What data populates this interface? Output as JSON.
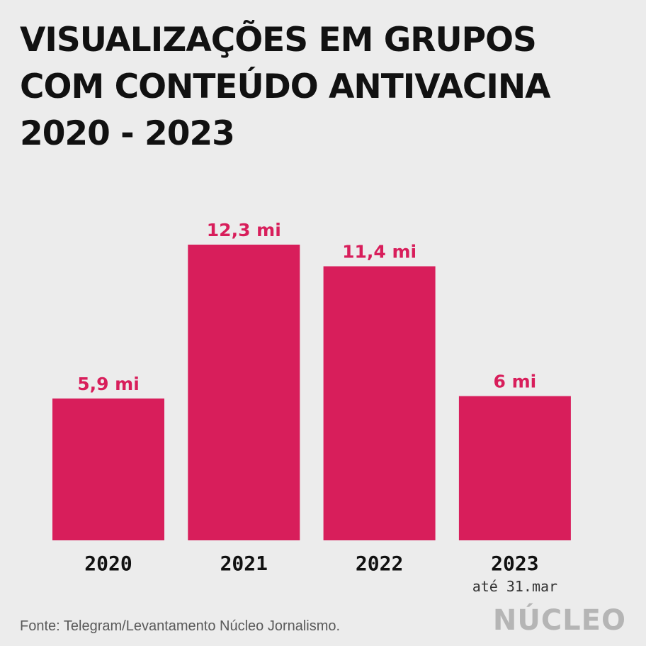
{
  "title_lines": [
    "VISUALIZAÇÕES EM GRUPOS",
    "COM CONTEÚDO ANTIVACINA",
    "2020 - 2023"
  ],
  "source": "Fonte: Telegram/Levantamento Núcleo Jornalismo.",
  "logo": "NÚCLEO",
  "colors": {
    "bar": "#d81e5b",
    "background": "#ececec",
    "text": "#111111",
    "logo": "#b5b5b5"
  },
  "chart_data": {
    "type": "bar",
    "title": "VISUALIZAÇÕES EM GRUPOS COM CONTEÚDO ANTIVACINA 2020 - 2023",
    "categories": [
      "2020",
      "2021",
      "2022",
      "2023"
    ],
    "category_notes": [
      "",
      "",
      "",
      "até 31.mar"
    ],
    "values": [
      5.9,
      12.3,
      11.4,
      6
    ],
    "data_labels": [
      "5,9 mi",
      "12,3 mi",
      "11,4 mi",
      "6 mi"
    ],
    "unit": "mi",
    "xlabel": "",
    "ylabel": "",
    "ylim": [
      0,
      12.3
    ],
    "grid": false,
    "legend": "none"
  }
}
